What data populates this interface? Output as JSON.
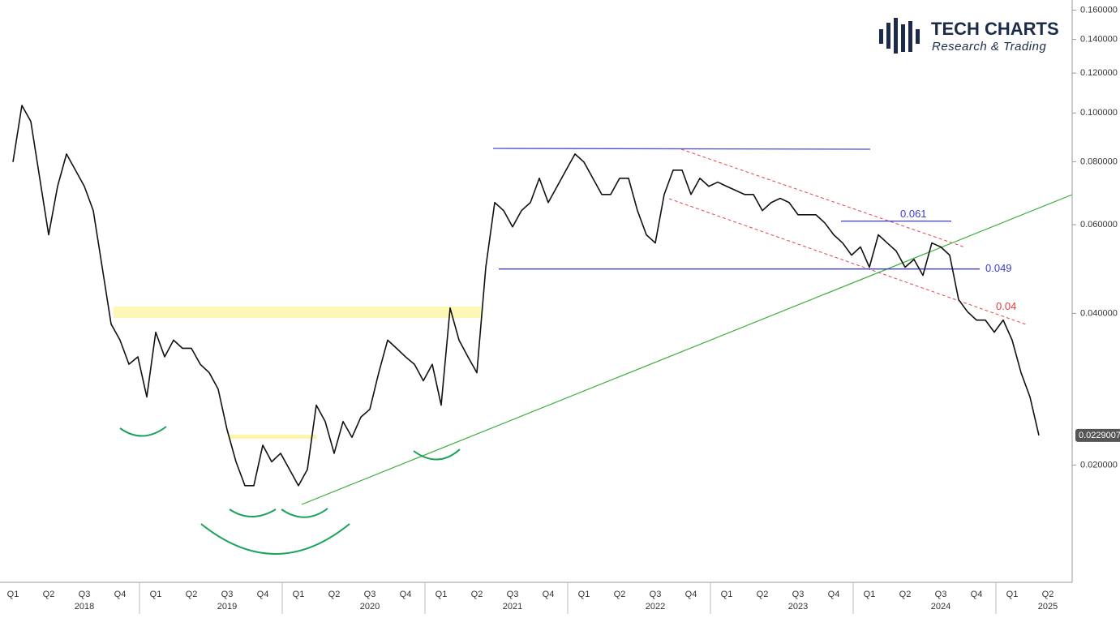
{
  "chart_data": {
    "type": "line",
    "brand": {
      "name": "TECH CHARTS",
      "tagline": "Research & Trading"
    },
    "log_scale": true,
    "ylim": [
      0.0117,
      0.1676
    ],
    "yticks": [
      {
        "value": 0.16,
        "label": "0.160000"
      },
      {
        "value": 0.14,
        "label": "0.140000"
      },
      {
        "value": 0.12,
        "label": "0.120000"
      },
      {
        "value": 0.1,
        "label": "0.100000"
      },
      {
        "value": 0.08,
        "label": "0.080000"
      },
      {
        "value": 0.06,
        "label": "0.060000"
      },
      {
        "value": 0.04,
        "label": "0.040000"
      },
      {
        "value": 0.02,
        "label": "0.020000"
      }
    ],
    "categories": [
      "Q1",
      null,
      null,
      null,
      "Q2",
      null,
      null,
      null,
      "Q3",
      null,
      null,
      null,
      "Q4",
      null,
      null,
      null,
      "Q1",
      null,
      null,
      null,
      "Q2",
      null,
      null,
      null,
      "Q3",
      null,
      null,
      null,
      "Q4",
      null,
      null,
      null,
      "Q1",
      null,
      null,
      null,
      "Q2",
      null,
      null,
      null,
      "Q3",
      null,
      null,
      null,
      "Q4",
      null,
      null,
      null,
      "Q1",
      null,
      null,
      null,
      "Q2",
      null,
      null,
      null,
      "Q3",
      null,
      null,
      null,
      "Q4",
      null,
      null,
      null,
      "Q1",
      null,
      null,
      null,
      "Q2",
      null,
      null,
      null,
      "Q3",
      null,
      null,
      null,
      "Q4",
      null,
      null,
      null,
      "Q1",
      null,
      null,
      null,
      "Q2",
      null,
      null,
      null,
      "Q3",
      null,
      null,
      null,
      "Q4",
      null,
      null,
      null,
      "Q1",
      null,
      null,
      null,
      "Q2",
      null,
      null,
      null,
      "Q3",
      null,
      null,
      null,
      "Q4",
      null,
      null,
      null,
      "Q1",
      null,
      null,
      null,
      "Q2"
    ],
    "year_labels": [
      null,
      null,
      null,
      null,
      null,
      null,
      null,
      null,
      "2018",
      null,
      null,
      null,
      null,
      null,
      null,
      null,
      null,
      null,
      null,
      null,
      null,
      null,
      null,
      null,
      "2019",
      null,
      null,
      null,
      null,
      null,
      null,
      null,
      null,
      null,
      null,
      null,
      null,
      null,
      null,
      null,
      "2020",
      null,
      null,
      null,
      null,
      null,
      null,
      null,
      null,
      null,
      null,
      null,
      null,
      null,
      null,
      null,
      "2021",
      null,
      null,
      null,
      null,
      null,
      null,
      null,
      null,
      null,
      null,
      null,
      null,
      null,
      null,
      null,
      "2022",
      null,
      null,
      null,
      null,
      null,
      null,
      null,
      null,
      null,
      null,
      null,
      null,
      null,
      null,
      null,
      "2023",
      null,
      null,
      null,
      null,
      null,
      null,
      null,
      null,
      null,
      null,
      null,
      null,
      null,
      null,
      null,
      "2024",
      null,
      null,
      null,
      null,
      null,
      null,
      null,
      null,
      null,
      null,
      null,
      "2025"
    ],
    "series": [
      {
        "name": null,
        "color": "#111111",
        "values": [
          0.0799,
          0.1035,
          0.0962,
          0.0742,
          0.0573,
          0.0715,
          0.0829,
          0.077,
          0.0715,
          0.064,
          0.0494,
          0.0381,
          0.0354,
          0.0317,
          0.0328,
          0.0273,
          0.0367,
          0.0328,
          0.0354,
          0.0341,
          0.0341,
          0.0317,
          0.0305,
          0.0283,
          0.0235,
          0.0203,
          0.0182,
          0.0182,
          0.0219,
          0.0203,
          0.0211,
          0.0196,
          0.0182,
          0.0196,
          0.0263,
          0.0244,
          0.0211,
          0.0244,
          0.0227,
          0.0249,
          0.0258,
          0.0305,
          0.0354,
          0.0341,
          0.0328,
          0.0317,
          0.0294,
          0.0317,
          0.0263,
          0.041,
          0.0354,
          0.0328,
          0.0305,
          0.0494,
          0.0664,
          0.064,
          0.0594,
          0.064,
          0.0664,
          0.0742,
          0.0664,
          0.0715,
          0.077,
          0.0829,
          0.0799,
          0.0742,
          0.0689,
          0.0689,
          0.0742,
          0.0742,
          0.064,
          0.0573,
          0.0552,
          0.0689,
          0.077,
          0.077,
          0.0689,
          0.0742,
          0.0715,
          0.0729,
          0.0715,
          0.0702,
          0.0689,
          0.0689,
          0.064,
          0.0664,
          0.0677,
          0.0664,
          0.0628,
          0.0628,
          0.0628,
          0.0605,
          0.0573,
          0.0552,
          0.0522,
          0.0542,
          0.0494,
          0.0573,
          0.0552,
          0.0532,
          0.0494,
          0.0512,
          0.0476,
          0.0552,
          0.0542,
          0.0522,
          0.0426,
          0.0403,
          0.0388,
          0.0388,
          0.0367,
          0.0388,
          0.0354,
          0.0305,
          0.0273,
          0.0229007,
          null
        ]
      }
    ],
    "last_price": 0.0229007,
    "levels": [
      {
        "value": 0.061,
        "label": "0.061",
        "color": "#3b3bd6"
      },
      {
        "value": 0.049,
        "label": "0.049",
        "color": "#3b3bd6"
      },
      {
        "value": 0.04,
        "label": "0.04",
        "color": "#e03c3c"
      }
    ]
  }
}
